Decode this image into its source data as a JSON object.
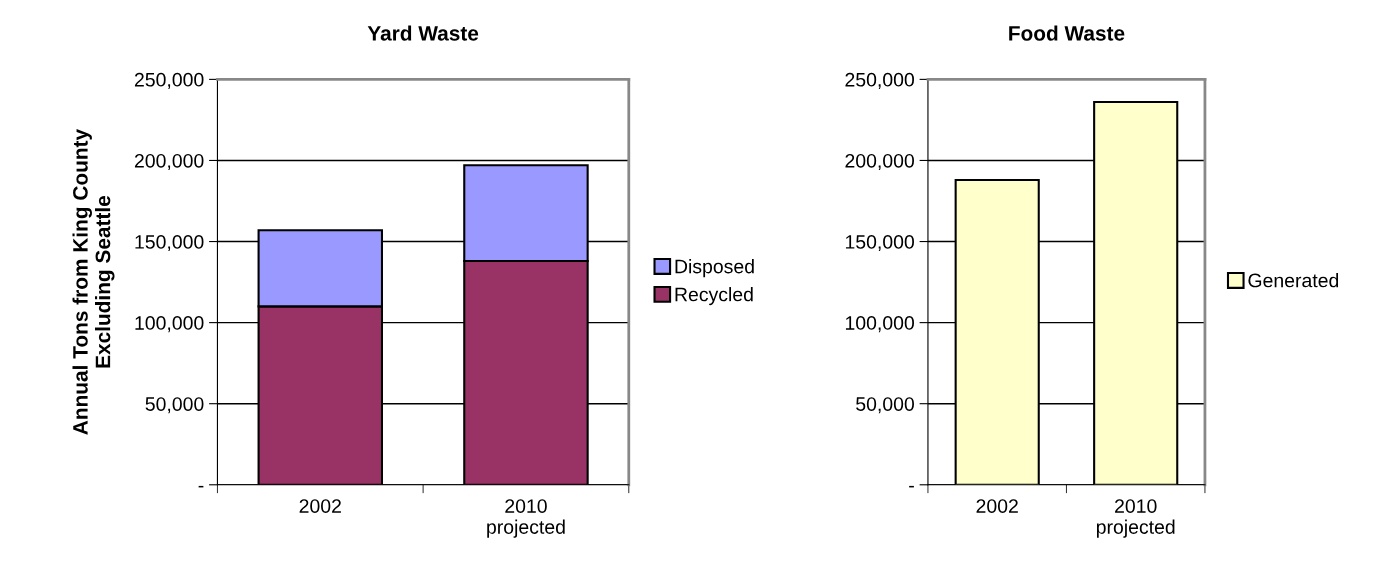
{
  "chart_data": [
    {
      "type": "bar",
      "title": "Yard Waste",
      "ylabel": "Annual Tons from King County\nExcluding Seattle",
      "categories": [
        "2002",
        "2010\nprojected"
      ],
      "stacked": true,
      "series": [
        {
          "name": "Recycled",
          "color": "#993366",
          "values": [
            110000,
            138000
          ]
        },
        {
          "name": "Disposed",
          "color": "#9999ff",
          "values": [
            47000,
            59000
          ]
        }
      ],
      "ylim": [
        0,
        250000
      ],
      "yticks": [
        {
          "value": 0,
          "label": "-"
        },
        {
          "value": 50000,
          "label": "50,000"
        },
        {
          "value": 100000,
          "label": "100,000"
        },
        {
          "value": 150000,
          "label": "150,000"
        },
        {
          "value": 200000,
          "label": "200,000"
        },
        {
          "value": 250000,
          "label": "250,000"
        }
      ],
      "grid": "y",
      "legend": "right"
    },
    {
      "type": "bar",
      "title": "Food Waste",
      "categories": [
        "2002",
        "2010\nprojected"
      ],
      "series": [
        {
          "name": "Generated",
          "color": "#ffffcc",
          "values": [
            188000,
            236000
          ]
        }
      ],
      "ylim": [
        0,
        250000
      ],
      "yticks": [
        {
          "value": 0,
          "label": "-"
        },
        {
          "value": 50000,
          "label": "50,000"
        },
        {
          "value": 100000,
          "label": "100,000"
        },
        {
          "value": 150000,
          "label": "150,000"
        },
        {
          "value": 200000,
          "label": "200,000"
        },
        {
          "value": 250000,
          "label": "250,000"
        }
      ],
      "grid": "y",
      "legend": "right"
    }
  ]
}
